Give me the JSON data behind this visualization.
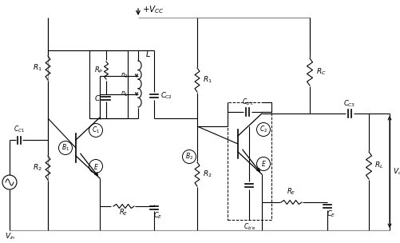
{
  "bg_color": "#ffffff",
  "line_color": "#000000",
  "gray_color": "#999999",
  "fig_width": 5.02,
  "fig_height": 3.04,
  "dpi": 100,
  "labels": {
    "Vcc": "$+ V_{CC}$",
    "Vin": "$V_{in}$",
    "Vout": "$V_{out}$",
    "R1_left": "$R_1$",
    "R2_left": "$R_2$",
    "RE_left": "$R_E$",
    "CE_left": "$C_E$",
    "CC1": "$C_{C1}$",
    "Rp": "$R_P$",
    "C_tank": "$C$",
    "L": "$L$",
    "n2": "$n_2$",
    "n1": "$n_1$",
    "CC2": "$C_{C2}$",
    "B1": "$B_1$",
    "C1": "$C_1$",
    "E1": "$E$",
    "R1_right": "$R_1$",
    "R2_right": "$R_2$",
    "B2": "$B_2$",
    "Cbc": "$C_{b'c}$",
    "Cbe": "$C_{b'e}$",
    "RC": "$R_C$",
    "C2": "$C_2$",
    "E2": "$E$",
    "RE2": "$R_E$",
    "CE2": "$C_E$",
    "CC3": "$C_{C3}$",
    "RL": "$R_L$"
  }
}
